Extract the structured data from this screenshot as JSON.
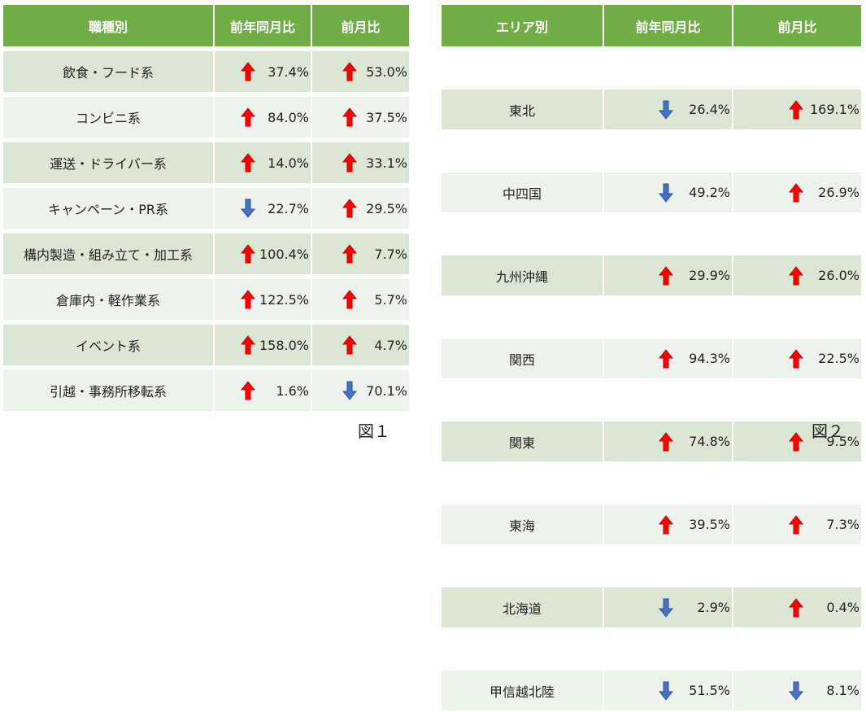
{
  "colors": {
    "header_bg": "#70ad47",
    "row_dark": "#dce6d4",
    "row_light": "#eef2ec",
    "arrow_up": "#ff0000",
    "arrow_down": "#4472c4"
  },
  "table1": {
    "caption": "図１",
    "headers": [
      "職種別",
      "前年同月比",
      "前月比"
    ],
    "rows": [
      {
        "name": "飲食・フード系",
        "yoy": "37.4%",
        "yoy_dir": "up",
        "mom": "53.0%",
        "mom_dir": "up"
      },
      {
        "name": "コンビニ系",
        "yoy": "84.0%",
        "yoy_dir": "up",
        "mom": "37.5%",
        "mom_dir": "up"
      },
      {
        "name": "運送・ドライバー系",
        "yoy": "14.0%",
        "yoy_dir": "up",
        "mom": "33.1%",
        "mom_dir": "up"
      },
      {
        "name": "キャンペーン・PR系",
        "yoy": "22.7%",
        "yoy_dir": "down",
        "mom": "29.5%",
        "mom_dir": "up"
      },
      {
        "name": "構内製造・組み立て・加工系",
        "yoy": "100.4%",
        "yoy_dir": "up",
        "mom": "7.7%",
        "mom_dir": "up"
      },
      {
        "name": "倉庫内・軽作業系",
        "yoy": "122.5%",
        "yoy_dir": "up",
        "mom": "5.7%",
        "mom_dir": "up"
      },
      {
        "name": "イベント系",
        "yoy": "158.0%",
        "yoy_dir": "up",
        "mom": "4.7%",
        "mom_dir": "up"
      },
      {
        "name": "引越・事務所移転系",
        "yoy": "1.6%",
        "yoy_dir": "up",
        "mom": "70.1%",
        "mom_dir": "down"
      }
    ]
  },
  "table2": {
    "caption": "図２",
    "headers": [
      "エリア別",
      "前年同月比",
      "前月比"
    ],
    "rows": [
      {
        "name": "東北",
        "yoy": "26.4%",
        "yoy_dir": "down",
        "mom": "169.1%",
        "mom_dir": "up"
      },
      {
        "name": "中四国",
        "yoy": "49.2%",
        "yoy_dir": "down",
        "mom": "26.9%",
        "mom_dir": "up"
      },
      {
        "name": "九州沖縄",
        "yoy": "29.9%",
        "yoy_dir": "up",
        "mom": "26.0%",
        "mom_dir": "up"
      },
      {
        "name": "関西",
        "yoy": "94.3%",
        "yoy_dir": "up",
        "mom": "22.5%",
        "mom_dir": "up"
      },
      {
        "name": "関東",
        "yoy": "74.8%",
        "yoy_dir": "up",
        "mom": "9.5%",
        "mom_dir": "up"
      },
      {
        "name": "東海",
        "yoy": "39.5%",
        "yoy_dir": "up",
        "mom": "7.3%",
        "mom_dir": "up"
      },
      {
        "name": "北海道",
        "yoy": "2.9%",
        "yoy_dir": "down",
        "mom": "0.4%",
        "mom_dir": "up"
      },
      {
        "name": "甲信越北陸",
        "yoy": "51.5%",
        "yoy_dir": "down",
        "mom": "8.1%",
        "mom_dir": "down"
      }
    ]
  }
}
